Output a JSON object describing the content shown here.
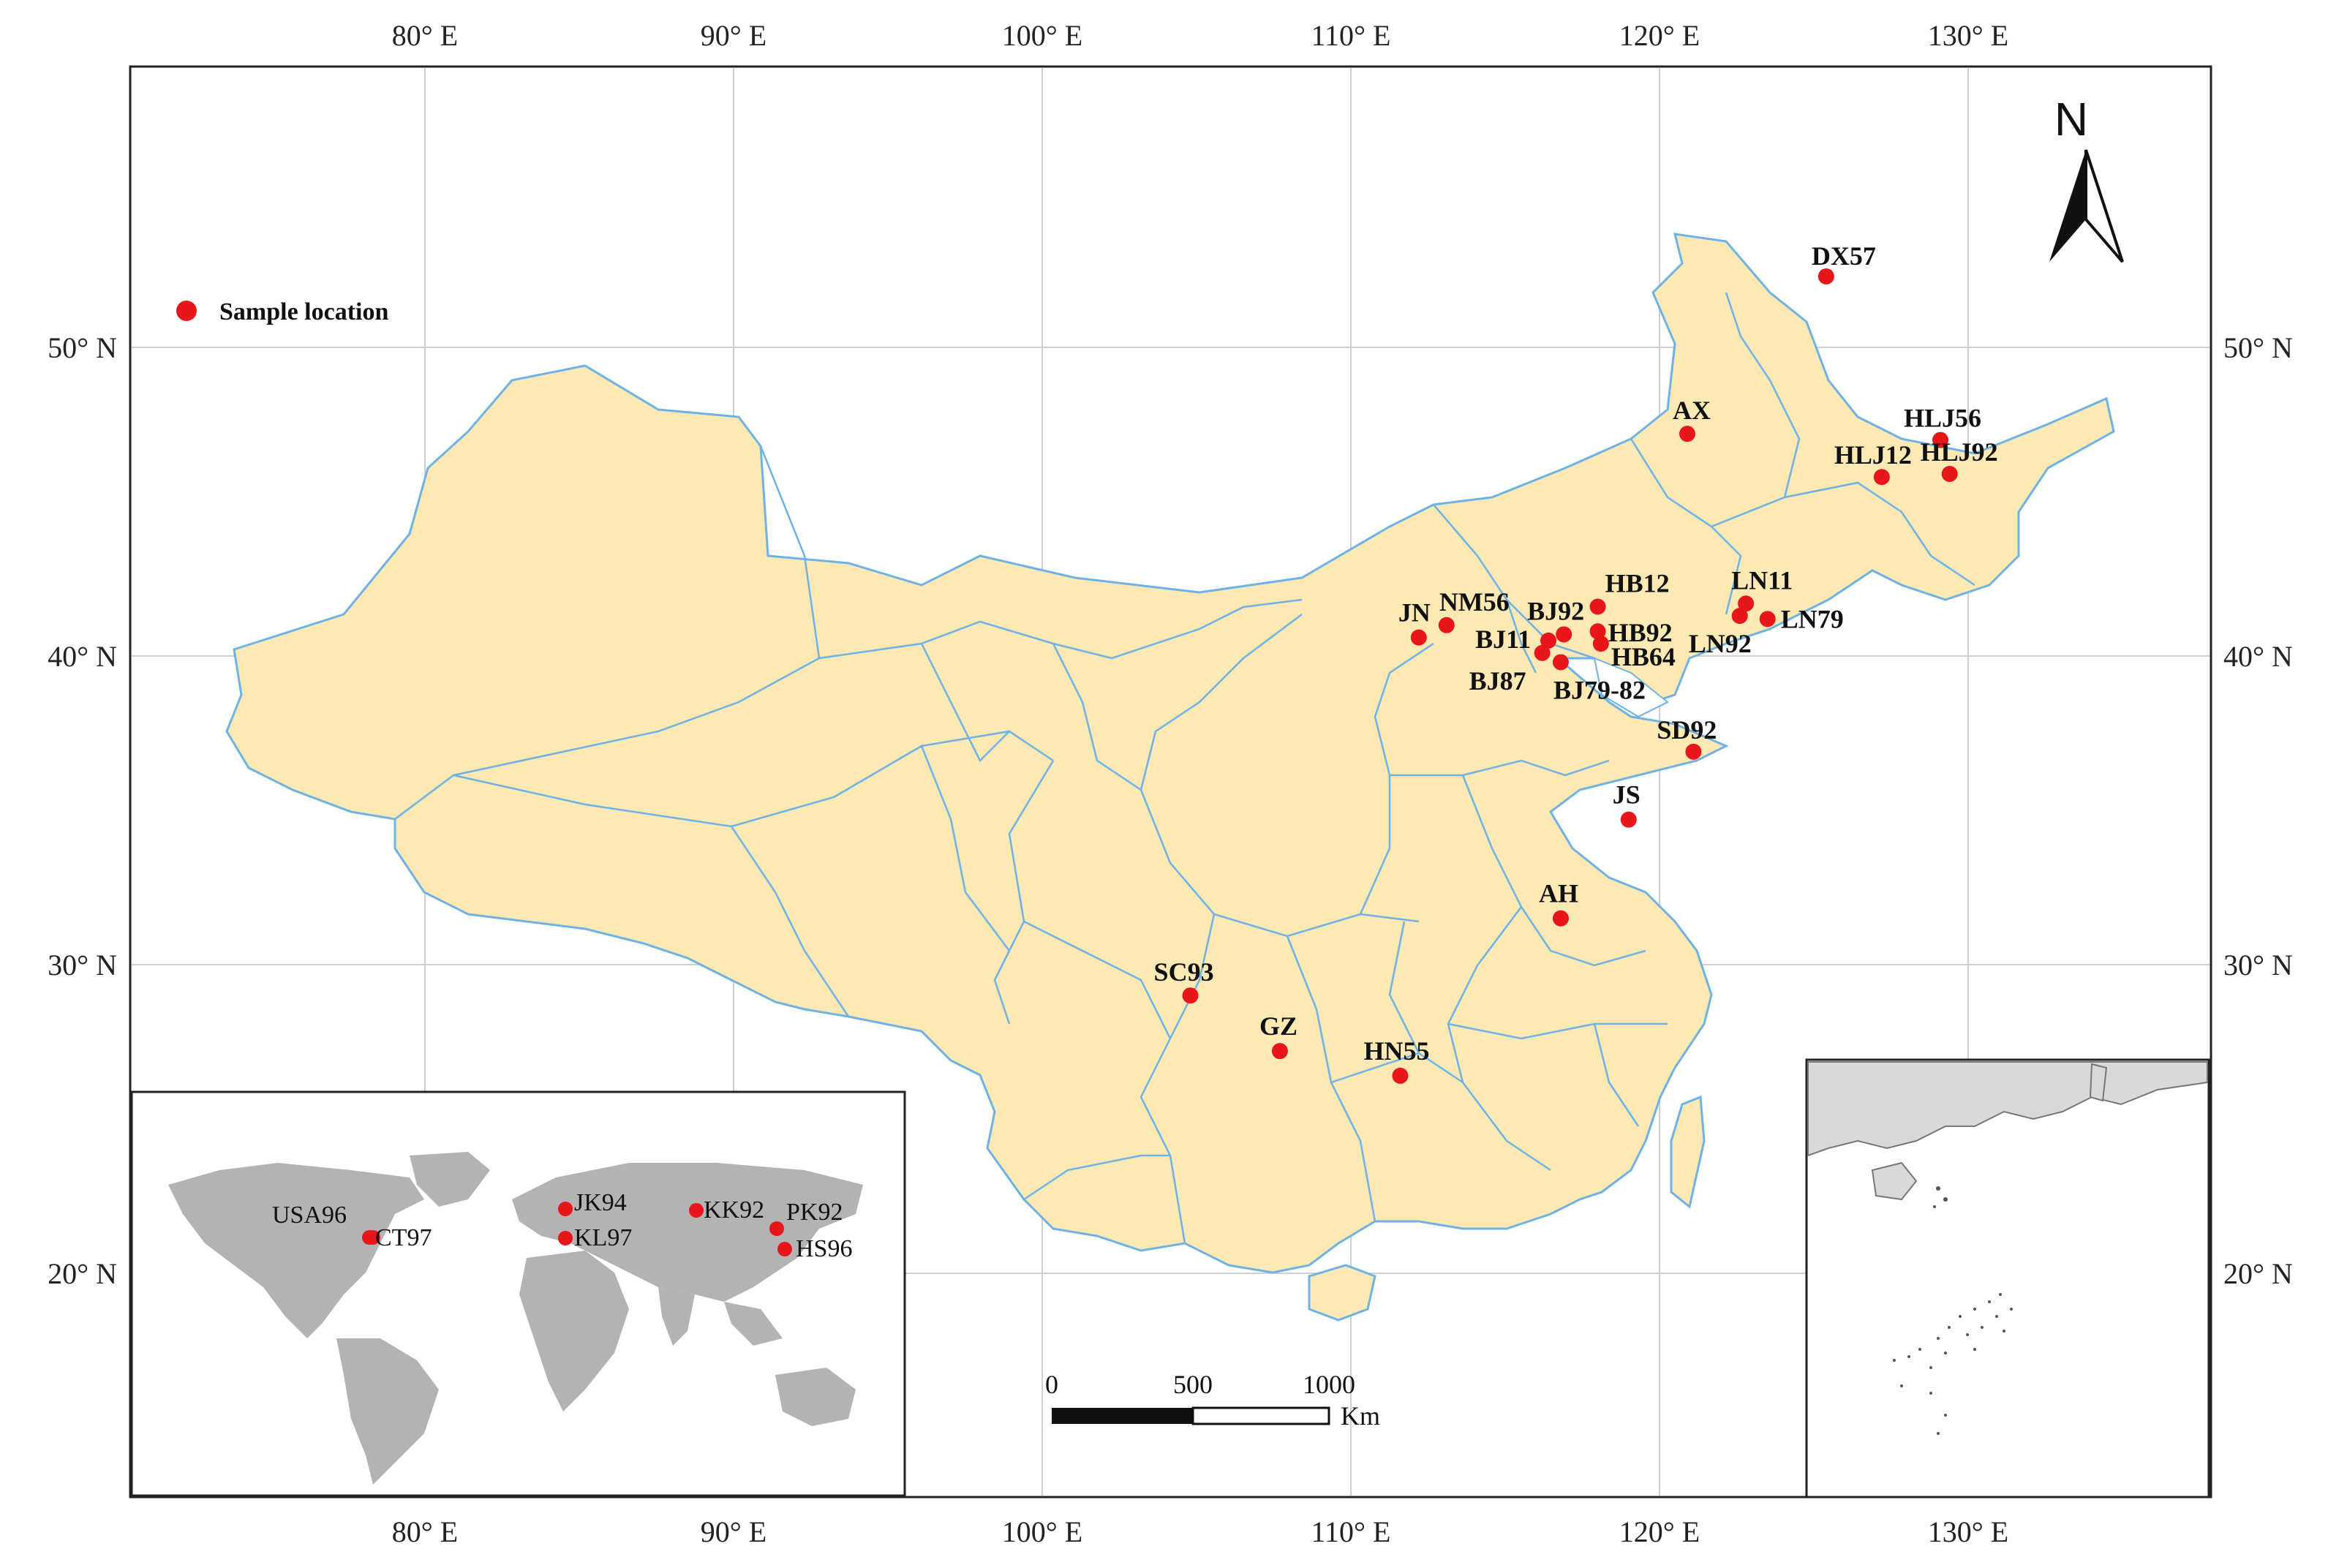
{
  "colors": {
    "land": "#fde9b4",
    "border": "#6fb2e6",
    "grid": "#cfcfcf",
    "frame": "#222222",
    "marker": "#e8161b",
    "inset_land": "#b3b3b3",
    "sea_inset_land": "#d9d9d9"
  },
  "map": {
    "longitude_labels": [
      "80° E",
      "90° E",
      "100° E",
      "110° E",
      "120° E",
      "130° E"
    ],
    "latitude_labels": [
      "50° N",
      "40° N",
      "30° N",
      "20° N"
    ],
    "north_label": "N",
    "legend_label": "Sample location",
    "scale": {
      "ticks": [
        "0",
        "500",
        "1000"
      ],
      "unit": "Km"
    }
  },
  "china_sites": [
    {
      "label": "DX57",
      "lon": 125.4,
      "lat": 52.3
    },
    {
      "label": "AX",
      "lon": 120.9,
      "lat": 47.2
    },
    {
      "label": "HLJ56",
      "lon": 129.1,
      "lat": 47.0
    },
    {
      "label": "HLJ12",
      "lon": 127.2,
      "lat": 45.8
    },
    {
      "label": "HLJ92",
      "lon": 129.4,
      "lat": 45.9
    },
    {
      "label": "HB12",
      "lon": 118.0,
      "lat": 41.6
    },
    {
      "label": "LN11",
      "lon": 122.8,
      "lat": 41.7
    },
    {
      "label": "LN79",
      "lon": 123.5,
      "lat": 41.2
    },
    {
      "label": "LN92",
      "lon": 122.6,
      "lat": 41.3
    },
    {
      "label": "NM56",
      "lon": 113.1,
      "lat": 41.0
    },
    {
      "label": "JN",
      "lon": 112.2,
      "lat": 40.6
    },
    {
      "label": "BJ92",
      "lon": 116.9,
      "lat": 40.7
    },
    {
      "label": "HB92",
      "lon": 118.0,
      "lat": 40.8
    },
    {
      "label": "BJ11",
      "lon": 116.4,
      "lat": 40.5
    },
    {
      "label": "HB64",
      "lon": 118.1,
      "lat": 40.4
    },
    {
      "label": "BJ87",
      "lon": 116.2,
      "lat": 40.1
    },
    {
      "label": "BJ79-82",
      "lon": 116.8,
      "lat": 39.8
    },
    {
      "label": "SD92",
      "lon": 121.1,
      "lat": 36.9
    },
    {
      "label": "JS",
      "lon": 119.0,
      "lat": 34.7
    },
    {
      "label": "AH",
      "lon": 116.8,
      "lat": 31.5
    },
    {
      "label": "SC93",
      "lon": 104.8,
      "lat": 29.0
    },
    {
      "label": "GZ",
      "lon": 107.7,
      "lat": 27.2
    },
    {
      "label": "HN55",
      "lon": 111.6,
      "lat": 26.4
    }
  ],
  "world_sites": [
    {
      "label": "USA96"
    },
    {
      "label": "CT97"
    },
    {
      "label": "JK94"
    },
    {
      "label": "KL97"
    },
    {
      "label": "KK92"
    },
    {
      "label": "PK92"
    },
    {
      "label": "HS96"
    }
  ]
}
